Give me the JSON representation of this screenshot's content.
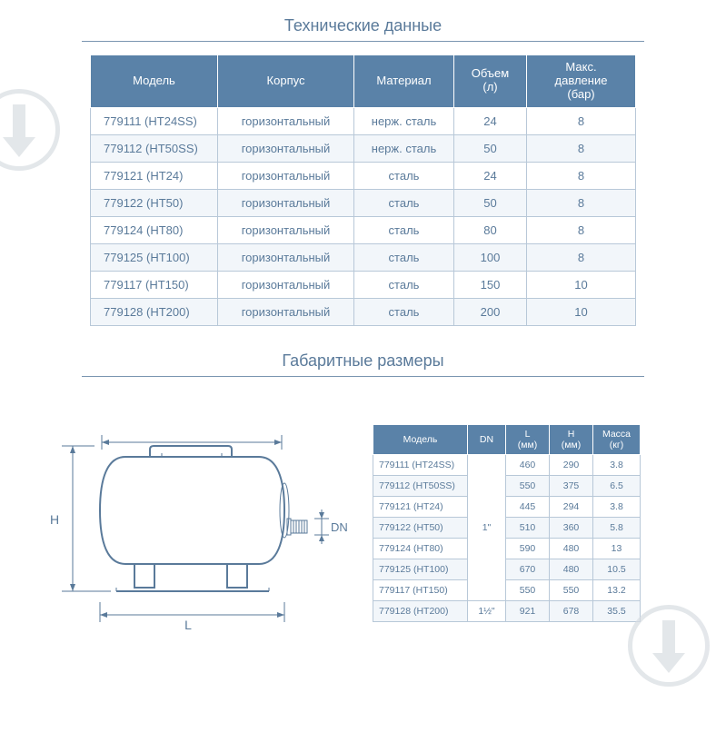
{
  "titles": {
    "tech": "Технические данные",
    "dims": "Габаритные размеры"
  },
  "colors": {
    "header_bg": "#5a82a8",
    "header_fg": "#ffffff",
    "cell_border": "#b8c8d8",
    "cell_fg": "#5a7a9a",
    "row_alt_bg": "#f2f6fa",
    "rule": "#7a95b0",
    "watermark": "#d8dde2"
  },
  "table1": {
    "headers": {
      "model": "Модель",
      "body": "Корпус",
      "material": "Материал",
      "volume": "Объем\n(л)",
      "pressure": "Макс. давление\n(бар)"
    },
    "rows": [
      {
        "model": "779111 (HT24SS)",
        "body": "горизонтальный",
        "material": "нерж. сталь",
        "volume": "24",
        "pressure": "8"
      },
      {
        "model": "779112 (HT50SS)",
        "body": "горизонтальный",
        "material": "нерж. сталь",
        "volume": "50",
        "pressure": "8"
      },
      {
        "model": "779121 (HT24)",
        "body": "горизонтальный",
        "material": "сталь",
        "volume": "24",
        "pressure": "8"
      },
      {
        "model": "779122 (HT50)",
        "body": "горизонтальный",
        "material": "сталь",
        "volume": "50",
        "pressure": "8"
      },
      {
        "model": "779124 (HT80)",
        "body": "горизонтальный",
        "material": "сталь",
        "volume": "80",
        "pressure": "8"
      },
      {
        "model": "779125 (HT100)",
        "body": "горизонтальный",
        "material": "сталь",
        "volume": "100",
        "pressure": "8"
      },
      {
        "model": "779117 (HT150)",
        "body": "горизонтальный",
        "material": "сталь",
        "volume": "150",
        "pressure": "10"
      },
      {
        "model": "779128 (HT200)",
        "body": "горизонтальный",
        "material": "сталь",
        "volume": "200",
        "pressure": "10"
      }
    ]
  },
  "table2": {
    "headers": {
      "model": "Модель",
      "dn": "DN",
      "l": "L\n(мм)",
      "h": "H\n(мм)",
      "mass": "Масса\n(кг)"
    },
    "rows": [
      {
        "model": "779111 (HT24SS)",
        "l": "460",
        "h": "290",
        "mass": "3.8"
      },
      {
        "model": "779112 (HT50SS)",
        "l": "550",
        "h": "375",
        "mass": "6.5"
      },
      {
        "model": "779121 (HT24)",
        "l": "445",
        "h": "294",
        "mass": "3.8"
      },
      {
        "model": "779122 (HT50)",
        "l": "510",
        "h": "360",
        "mass": "5.8"
      },
      {
        "model": "779124 (HT80)",
        "l": "590",
        "h": "480",
        "mass": "13"
      },
      {
        "model": "779125 (HT100)",
        "l": "670",
        "h": "480",
        "mass": "10.5"
      },
      {
        "model": "779117 (HT150)",
        "l": "550",
        "h": "550",
        "mass": "13.2"
      },
      {
        "model": "779128 (HT200)",
        "l": "921",
        "h": "678",
        "mass": "35.5"
      }
    ],
    "dn_groups": [
      {
        "value": "1\"",
        "rowspan": 7
      },
      {
        "value": "1½\"",
        "rowspan": 1
      }
    ]
  },
  "diagram": {
    "labels": {
      "H": "H",
      "L": "L",
      "DN": "DN"
    }
  }
}
